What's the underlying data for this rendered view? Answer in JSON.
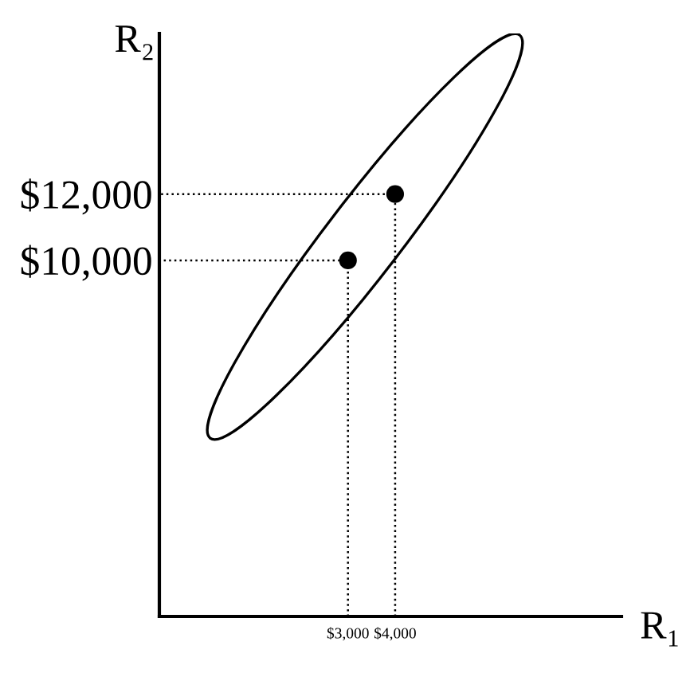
{
  "chart_data": {
    "type": "scatter",
    "xlabel": "R₁",
    "ylabel": "R₂",
    "xlim": [
      -1000,
      8800
    ],
    "ylim": [
      -750,
      16850
    ],
    "xticks": [
      {
        "value": 3000,
        "label": "$3,000"
      },
      {
        "value": 4000,
        "label": "$4,000"
      }
    ],
    "yticks": [
      {
        "value": 10000,
        "label": "$10,000"
      },
      {
        "value": 12000,
        "label": "$12,000"
      }
    ],
    "series": [
      {
        "type": "line",
        "line_style": "dotted",
        "color": "#000000",
        "x": [
          3000,
          3000,
          -1000
        ],
        "values": [
          -750,
          10000,
          10000
        ]
      },
      {
        "type": "line",
        "line_style": "dotted",
        "color": "#000000",
        "x": [
          4000,
          4000,
          -1000
        ],
        "values": [
          -750,
          12000,
          12000
        ]
      },
      {
        "marker": "circle",
        "color": "#000000",
        "x": [
          3000,
          4000
        ],
        "values": [
          10000,
          12000
        ]
      }
    ]
  }
}
